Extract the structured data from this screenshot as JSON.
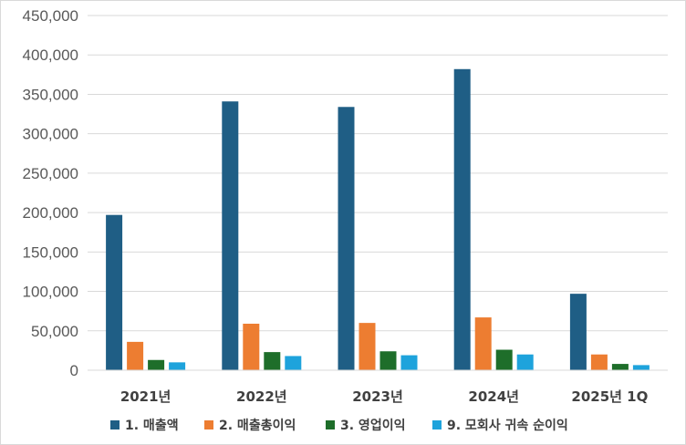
{
  "chart_data": {
    "type": "bar",
    "title": "",
    "xlabel": "",
    "ylabel": "",
    "ylim": [
      0,
      450000
    ],
    "yticks": [
      {
        "value": 0,
        "label": "0"
      },
      {
        "value": 50000,
        "label": "50,000"
      },
      {
        "value": 100000,
        "label": "100,000"
      },
      {
        "value": 150000,
        "label": "150,000"
      },
      {
        "value": 200000,
        "label": "200,000"
      },
      {
        "value": 250000,
        "label": "250,000"
      },
      {
        "value": 300000,
        "label": "300,000"
      },
      {
        "value": 350000,
        "label": "350,000"
      },
      {
        "value": 400000,
        "label": "400,000"
      },
      {
        "value": 450000,
        "label": "450,000"
      }
    ],
    "grid": true,
    "legend_position": "bottom",
    "categories": [
      "2021년",
      "2022년",
      "2023년",
      "2024년",
      "2025년 1Q"
    ],
    "series": [
      {
        "name": "1. 매출액",
        "color": "#1f5e85",
        "values": [
          197000,
          341000,
          334000,
          382000,
          97000
        ]
      },
      {
        "name": "2. 매출총이익",
        "color": "#ed7d31",
        "values": [
          36000,
          59000,
          60000,
          67000,
          20000
        ]
      },
      {
        "name": "3. 영업이익",
        "color": "#1e6e2a",
        "values": [
          13000,
          23000,
          24000,
          26000,
          8000
        ]
      },
      {
        "name": "9. 모회사 귀속 순이익",
        "color": "#1ea3dc",
        "values": [
          10000,
          18000,
          19000,
          20000,
          6500
        ]
      }
    ]
  }
}
